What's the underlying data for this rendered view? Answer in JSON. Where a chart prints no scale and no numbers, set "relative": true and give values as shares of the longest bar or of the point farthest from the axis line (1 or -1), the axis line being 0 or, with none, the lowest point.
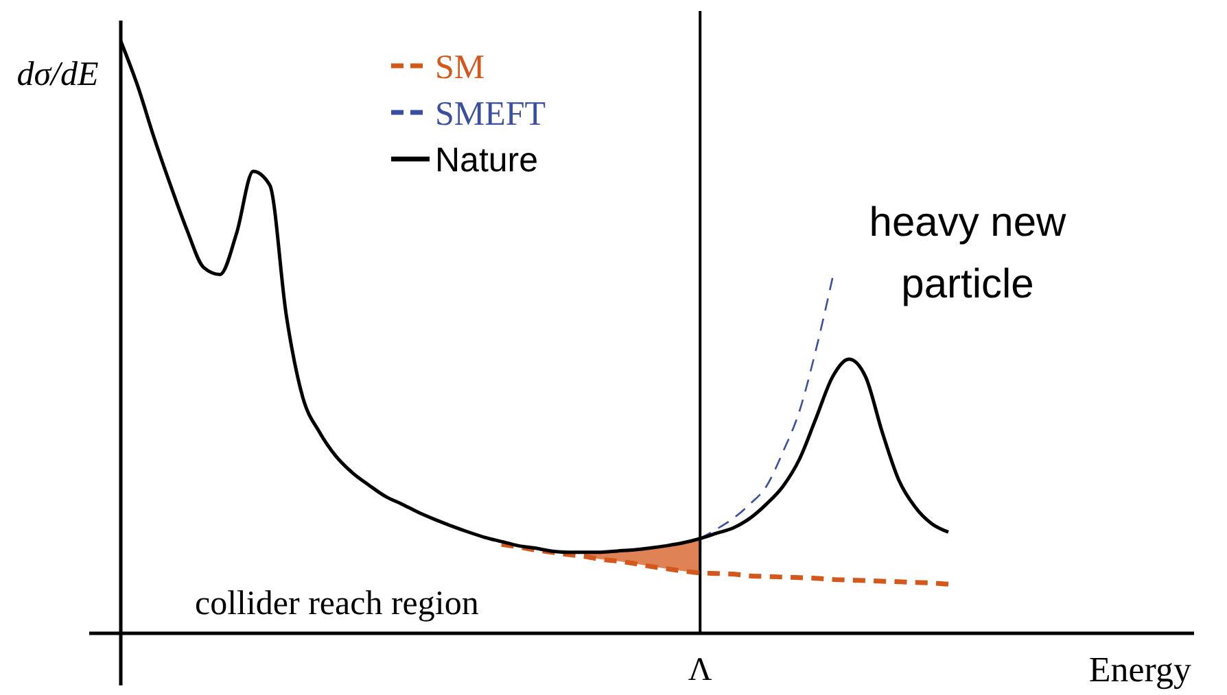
{
  "chart_data": {
    "type": "line",
    "relative": true,
    "xlabel": "Energy",
    "ylabel": "dσ/dE",
    "legend": "top",
    "categories": [
      null,
      null,
      null,
      null,
      null,
      null,
      null,
      null,
      null,
      null,
      null,
      null,
      null,
      null,
      null,
      null,
      null,
      null,
      null,
      null,
      null,
      null,
      null,
      null,
      null,
      null,
      null,
      null,
      null,
      null,
      null,
      null,
      null,
      null,
      null,
      null,
      null,
      null,
      null,
      null,
      null,
      null,
      null,
      null,
      null,
      null,
      null,
      null,
      null,
      null,
      null
    ],
    "series": [
      {
        "name": "SM",
        "color": "#d4581c",
        "line_style": "dashed",
        "values": [
          null,
          null,
          null,
          null,
          null,
          null,
          null,
          null,
          null,
          null,
          null,
          null,
          null,
          null,
          null,
          null,
          null,
          null,
          null,
          null,
          null,
          null,
          null,
          0.15,
          0.146,
          0.141,
          0.137,
          0.133,
          0.13,
          0.125,
          0.122,
          0.118,
          0.113,
          0.109,
          0.105,
          0.102,
          0.101,
          0.1,
          0.097,
          0.096,
          0.095,
          0.094,
          0.093,
          0.091,
          0.09,
          0.089,
          0.088,
          0.087,
          0.086,
          0.085,
          0.083
        ],
        "lower": [
          null,
          null,
          null,
          null,
          null,
          null,
          null,
          null,
          null,
          null,
          null,
          null,
          null,
          null,
          null,
          null,
          null,
          null,
          null,
          null,
          null,
          null,
          null,
          null,
          null,
          null,
          null,
          null,
          0.13,
          0.125,
          0.122,
          0.118,
          0.113,
          0.109,
          0.105,
          0.102,
          null,
          null,
          null,
          null,
          null,
          null,
          null,
          null,
          null,
          null,
          null,
          null,
          null,
          null,
          null
        ],
        "upper": [
          null,
          null,
          null,
          null,
          null,
          null,
          null,
          null,
          null,
          null,
          null,
          null,
          null,
          null,
          null,
          null,
          null,
          null,
          null,
          null,
          null,
          null,
          null,
          null,
          null,
          null,
          null,
          null,
          0.137,
          0.137,
          0.139,
          0.141,
          0.144,
          0.148,
          0.153,
          0.16,
          null,
          null,
          null,
          null,
          null,
          null,
          null,
          null,
          null,
          null,
          null,
          null,
          null,
          null,
          null
        ]
      },
      {
        "name": "SMEFT",
        "color": "#3a4fa0",
        "line_style": "dashed",
        "values": [
          null,
          null,
          null,
          null,
          null,
          null,
          null,
          null,
          null,
          null,
          null,
          null,
          null,
          null,
          null,
          null,
          null,
          null,
          null,
          null,
          null,
          null,
          null,
          null,
          null,
          null,
          null,
          null,
          null,
          null,
          null,
          null,
          null,
          null,
          null,
          0.16,
          0.176,
          0.194,
          0.218,
          0.248,
          0.306,
          0.375,
          0.479,
          0.6,
          null,
          null,
          null,
          null,
          null,
          null,
          null
        ]
      },
      {
        "name": "Nature",
        "color": "#000000",
        "line_style": "solid",
        "values": [
          1.0,
          0.926,
          0.838,
          0.757,
          0.681,
          0.618,
          0.606,
          0.676,
          0.78,
          0.757,
          0.537,
          0.398,
          0.34,
          0.299,
          0.271,
          0.25,
          0.231,
          0.218,
          0.204,
          0.192,
          0.181,
          0.171,
          0.162,
          0.155,
          0.148,
          0.144,
          0.139,
          0.137,
          0.137,
          0.137,
          0.139,
          0.141,
          0.144,
          0.148,
          0.153,
          0.16,
          0.169,
          0.178,
          0.194,
          0.218,
          0.248,
          0.294,
          0.363,
          0.433,
          0.463,
          0.433,
          0.34,
          0.259,
          0.213,
          0.185,
          0.171
        ]
      }
    ],
    "annotations": [
      "collider reach region",
      "heavy new particle",
      "Λ"
    ]
  }
}
